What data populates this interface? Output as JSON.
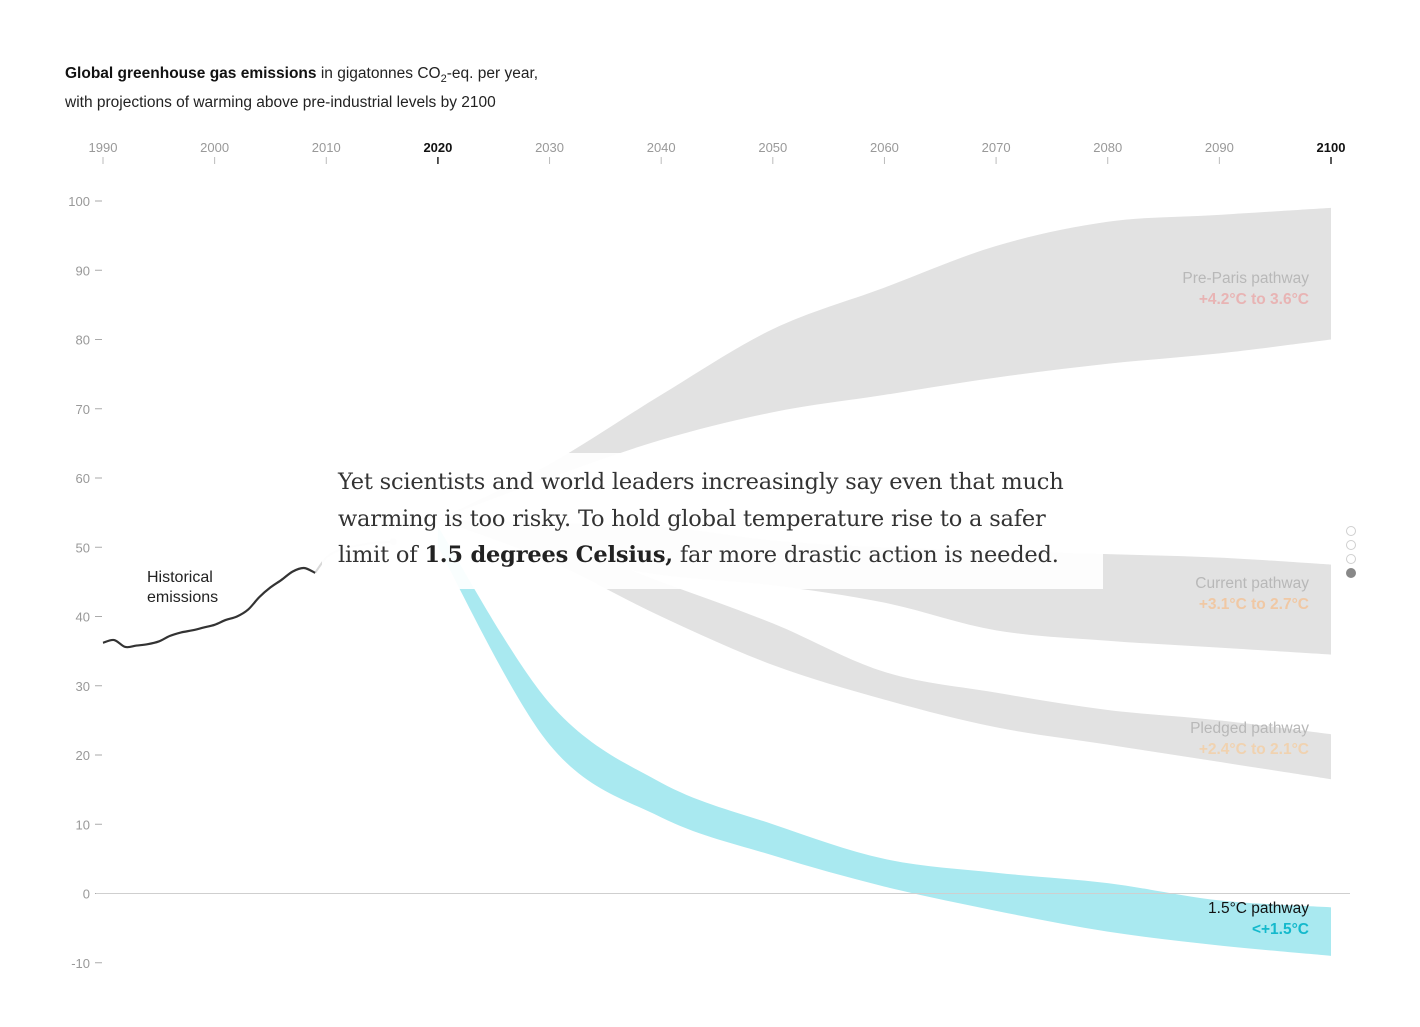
{
  "header": {
    "title_bold": "Global greenhouse gas emissions",
    "title_rest_1": " in gigatonnes CO",
    "title_sub": "2",
    "title_rest_2": "-eq. per year,",
    "subtitle": "with projections of warming above pre-industrial levels by 2100"
  },
  "caption": {
    "text_before": "Yet scientists and world leaders increasingly say even that much warming is too risky. To hold global temperature rise to a safer limit of ",
    "text_bold": "1.5 degrees Celsius,",
    "text_after": " far more drastic action is needed."
  },
  "colors": {
    "band_gray": "#e2e2e2",
    "band_cyan": "#a9e9f0",
    "historical_line": "#333333",
    "axis_text": "#999999",
    "pre_paris_warming": "#e8b4b4",
    "current_warming": "#f0c8a4",
    "pledged_warming": "#f0d2b0",
    "onefive_warming": "#14b9cc"
  },
  "step_dots": {
    "count": 4,
    "active_index": 3
  },
  "chart_data": {
    "type": "area",
    "x_ticks": [
      1990,
      2000,
      2010,
      2020,
      2030,
      2040,
      2050,
      2060,
      2070,
      2080,
      2090,
      2100
    ],
    "x_ticks_bold": [
      2020,
      2100
    ],
    "y_ticks": [
      100,
      90,
      80,
      70,
      60,
      50,
      40,
      30,
      20,
      10,
      0,
      -10
    ],
    "xlim": [
      1990,
      2100
    ],
    "ylim": [
      -10,
      100
    ],
    "historical": {
      "label": "Historical emissions",
      "points": [
        [
          1990,
          36.2
        ],
        [
          1991,
          36.6
        ],
        [
          1992,
          35.6
        ],
        [
          1993,
          35.8
        ],
        [
          1994,
          36.0
        ],
        [
          1995,
          36.4
        ],
        [
          1996,
          37.2
        ],
        [
          1997,
          37.7
        ],
        [
          1998,
          38.0
        ],
        [
          1999,
          38.4
        ],
        [
          2000,
          38.8
        ],
        [
          2001,
          39.5
        ],
        [
          2002,
          40.0
        ],
        [
          2003,
          41.0
        ],
        [
          2004,
          42.8
        ],
        [
          2005,
          44.2
        ],
        [
          2006,
          45.3
        ],
        [
          2007,
          46.5
        ],
        [
          2008,
          47.0
        ],
        [
          2009,
          46.3
        ],
        [
          2010,
          48.5
        ],
        [
          2011,
          49.5
        ],
        [
          2012,
          50.0
        ],
        [
          2013,
          50.3
        ],
        [
          2014,
          50.6
        ],
        [
          2015,
          50.7
        ],
        [
          2016,
          50.8
        ]
      ]
    },
    "series": [
      {
        "name": "Pre-Paris pathway",
        "warming": "+4.2°C to 3.6°C",
        "color": "gray",
        "upper": [
          [
            2020,
            54
          ],
          [
            2030,
            62
          ],
          [
            2040,
            72
          ],
          [
            2050,
            81.5
          ],
          [
            2060,
            87.5
          ],
          [
            2070,
            93.5
          ],
          [
            2080,
            97
          ],
          [
            2090,
            98
          ],
          [
            2100,
            99
          ]
        ],
        "lower": [
          [
            2020,
            54
          ],
          [
            2030,
            60
          ],
          [
            2040,
            65.5
          ],
          [
            2050,
            69.5
          ],
          [
            2060,
            72
          ],
          [
            2070,
            74.5
          ],
          [
            2080,
            76.5
          ],
          [
            2090,
            78
          ],
          [
            2100,
            80
          ]
        ]
      },
      {
        "name": "Current pathway",
        "warming": "+3.1°C to 2.7°C",
        "color": "gray",
        "upper": [
          [
            2020,
            54
          ],
          [
            2030,
            53.5
          ],
          [
            2040,
            53
          ],
          [
            2050,
            51
          ],
          [
            2060,
            50
          ],
          [
            2070,
            49.5
          ],
          [
            2080,
            49
          ],
          [
            2090,
            48.5
          ],
          [
            2100,
            47.5
          ]
        ],
        "lower": [
          [
            2020,
            54
          ],
          [
            2030,
            49
          ],
          [
            2040,
            46
          ],
          [
            2050,
            44.5
          ],
          [
            2060,
            42
          ],
          [
            2070,
            38
          ],
          [
            2080,
            36.5
          ],
          [
            2090,
            35.5
          ],
          [
            2100,
            34.5
          ]
        ]
      },
      {
        "name": "Pledged pathway",
        "warming": "+2.4°C to 2.1°C",
        "color": "gray",
        "upper": [
          [
            2020,
            54
          ],
          [
            2030,
            51
          ],
          [
            2040,
            45
          ],
          [
            2050,
            39
          ],
          [
            2060,
            32
          ],
          [
            2070,
            29
          ],
          [
            2080,
            26.5
          ],
          [
            2090,
            25
          ],
          [
            2100,
            23
          ]
        ],
        "lower": [
          [
            2020,
            54
          ],
          [
            2030,
            48
          ],
          [
            2040,
            40
          ],
          [
            2050,
            33
          ],
          [
            2060,
            28
          ],
          [
            2070,
            24
          ],
          [
            2080,
            21.5
          ],
          [
            2090,
            19
          ],
          [
            2100,
            16.5
          ]
        ]
      },
      {
        "name": "1.5°C pathway",
        "warming": "<+1.5°C",
        "color": "cyan",
        "upper": [
          [
            2020,
            53
          ],
          [
            2030,
            27.5
          ],
          [
            2040,
            16
          ],
          [
            2050,
            10
          ],
          [
            2060,
            5
          ],
          [
            2070,
            3
          ],
          [
            2080,
            1.5
          ],
          [
            2090,
            -1
          ],
          [
            2100,
            -2
          ]
        ],
        "lower": [
          [
            2020,
            50
          ],
          [
            2030,
            21.5
          ],
          [
            2040,
            11
          ],
          [
            2050,
            5.5
          ],
          [
            2060,
            1
          ],
          [
            2070,
            -2.5
          ],
          [
            2080,
            -5.5
          ],
          [
            2090,
            -7.5
          ],
          [
            2100,
            -9
          ]
        ]
      }
    ]
  }
}
